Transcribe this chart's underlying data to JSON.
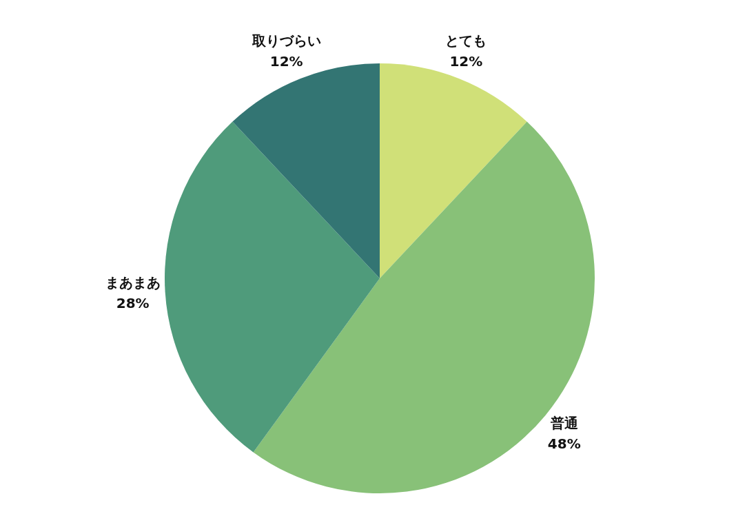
{
  "chart_data": {
    "type": "pie",
    "categories": [
      "とても",
      "普通",
      "まあまあ",
      "取りづらい"
    ],
    "values": [
      12,
      48,
      28,
      12
    ],
    "value_labels": [
      "12%",
      "48%",
      "28%",
      "12%"
    ],
    "colors": [
      "#d0e078",
      "#88c178",
      "#4f9b7b",
      "#337573"
    ]
  }
}
